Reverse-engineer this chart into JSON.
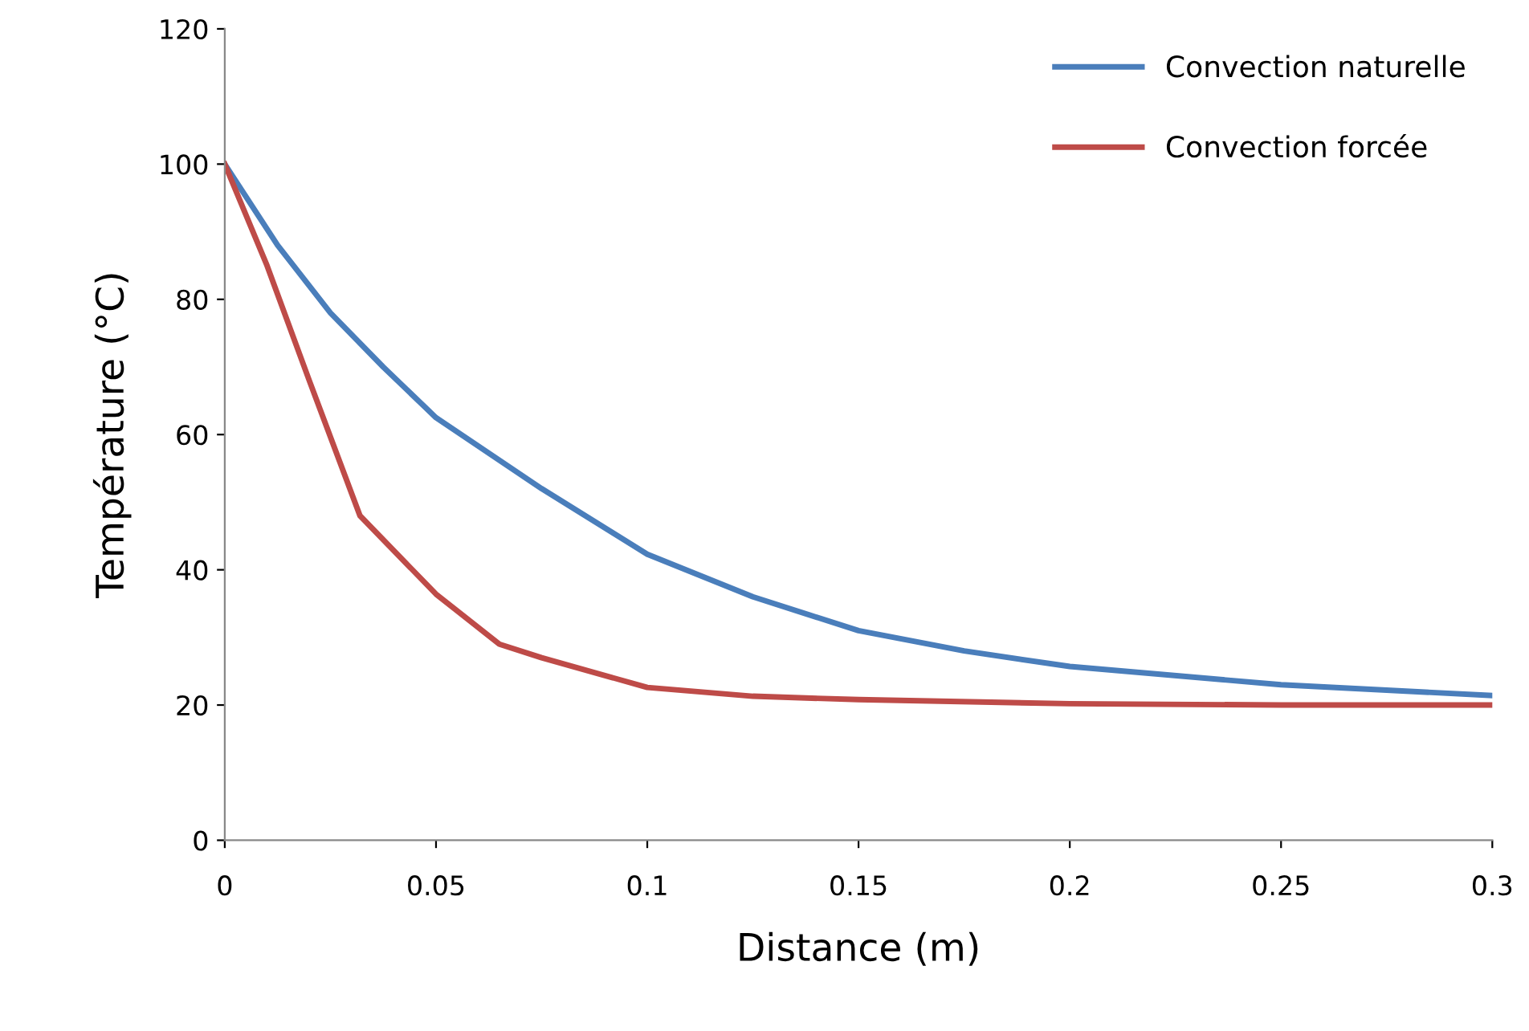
{
  "chart_data": {
    "type": "line",
    "xlabel": "Distance (m)",
    "ylabel": "Température (°C)",
    "xlim": [
      0,
      0.3
    ],
    "xticks": [
      0,
      0.05,
      0.1,
      0.15,
      0.2,
      0.25,
      0.3
    ],
    "ylim": [
      0,
      120
    ],
    "yticks": [
      0,
      20,
      40,
      60,
      80,
      100,
      120
    ],
    "grid": false,
    "legend": "top right",
    "marker": "none",
    "line_style": "solid",
    "series": [
      {
        "name": "Convection naturelle",
        "color": "#4a7ebb",
        "x": [
          0,
          0.0125,
          0.025,
          0.0375,
          0.05,
          0.075,
          0.1,
          0.125,
          0.15,
          0.175,
          0.2,
          0.25,
          0.3
        ],
        "values": [
          100,
          88,
          78,
          70,
          62.5,
          52,
          42.3,
          36,
          31,
          28,
          25.7,
          23,
          21.4
        ]
      },
      {
        "name": "Convection forcée",
        "color": "#be4b48",
        "x": [
          0,
          0.01,
          0.02,
          0.032,
          0.05,
          0.065,
          0.075,
          0.1,
          0.125,
          0.15,
          0.2,
          0.25,
          0.3
        ],
        "values": [
          100,
          85,
          68,
          48,
          36.4,
          29,
          27,
          22.6,
          21.3,
          20.8,
          20.2,
          20,
          20
        ]
      }
    ]
  }
}
